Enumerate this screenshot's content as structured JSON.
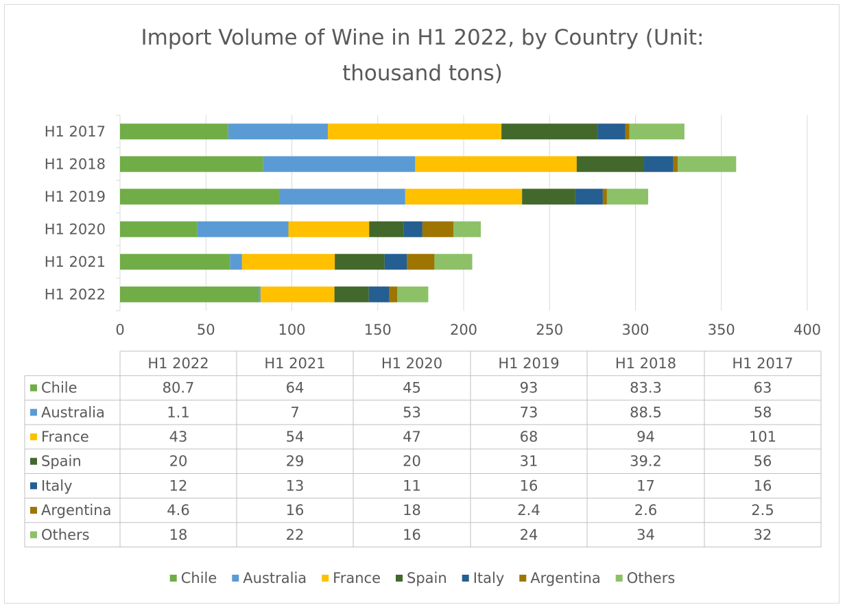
{
  "chart_data": {
    "type": "bar",
    "orientation": "horizontal",
    "stacked": true,
    "title": "Import Volume of Wine in H1 2022, by Country (Unit: thousand tons)",
    "title_lines": [
      "Import Volume of Wine in H1 2022, by Country (Unit:",
      "thousand tons)"
    ],
    "categories": [
      "H1 2022",
      "H1 2021",
      "H1 2020",
      "H1 2019",
      "H1 2018",
      "H1 2017"
    ],
    "xlim": [
      0,
      400
    ],
    "x_ticks": [
      0,
      50,
      100,
      150,
      200,
      250,
      300,
      350,
      400
    ],
    "grid": true,
    "legend_position": "bottom",
    "data_table": true,
    "series": [
      {
        "name": "Chile",
        "color": "#70ad47",
        "values": [
          80.7,
          64,
          45,
          93,
          83.3,
          63
        ]
      },
      {
        "name": "Australia",
        "color": "#5b9bd5",
        "values": [
          1.1,
          7,
          53,
          73,
          88.5,
          58
        ]
      },
      {
        "name": "France",
        "color": "#ffc000",
        "values": [
          43,
          54,
          47,
          68,
          94,
          101
        ]
      },
      {
        "name": "Spain",
        "color": "#43682b",
        "values": [
          20,
          29,
          20,
          31,
          39.2,
          56
        ]
      },
      {
        "name": "Italy",
        "color": "#255e91",
        "values": [
          12,
          13,
          11,
          16,
          17,
          16
        ]
      },
      {
        "name": "Argentina",
        "color": "#9e7500",
        "values": [
          4.6,
          16,
          18,
          2.4,
          2.6,
          2.5
        ]
      },
      {
        "name": "Others",
        "color": "#8cc168",
        "values": [
          18,
          22,
          16,
          24,
          34,
          32
        ]
      }
    ]
  }
}
